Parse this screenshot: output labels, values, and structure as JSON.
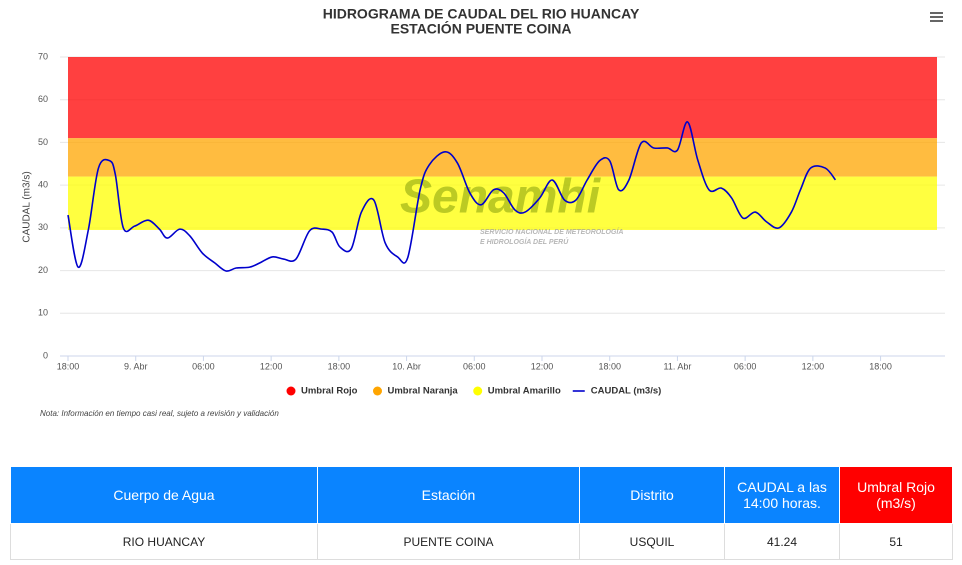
{
  "chart_data": {
    "type": "line",
    "title": [
      "HIDROGRAMA DE CAUDAL DEL RIO HUANCAY",
      "ESTACIÓN PUENTE COINA"
    ],
    "y_label": "CAUDAL (m3/s)",
    "note": "Nota: Información en tiempo casi real, sujeto a revisión y validación",
    "watermark": {
      "name": "Senamhi",
      "lines": [
        "SERVICIO NACIONAL DE METEOROLOGÍA",
        "E HIDROLOGÍA DEL PERÚ"
      ]
    },
    "xlim": [
      0,
      77
    ],
    "ylim": [
      0,
      70
    ],
    "yticks": [
      0,
      10,
      20,
      30,
      40,
      50,
      60,
      70
    ],
    "xticks": [
      {
        "value": 0,
        "label": "18:00"
      },
      {
        "value": 6,
        "label": "9. Abr"
      },
      {
        "value": 12,
        "label": "06:00"
      },
      {
        "value": 18,
        "label": "12:00"
      },
      {
        "value": 24,
        "label": "18:00"
      },
      {
        "value": 30,
        "label": "10. Abr"
      },
      {
        "value": 36,
        "label": "06:00"
      },
      {
        "value": 42,
        "label": "12:00"
      },
      {
        "value": 48,
        "label": "18:00"
      },
      {
        "value": 54,
        "label": "11. Abr"
      },
      {
        "value": 60,
        "label": "06:00"
      },
      {
        "value": 66,
        "label": "12:00"
      },
      {
        "value": 72,
        "label": "18:00"
      }
    ],
    "grid": true,
    "x": [
      0,
      0.9,
      1.8,
      2.7,
      3.7,
      4.2,
      4.9,
      5.9,
      7.1,
      8.1,
      8.8,
      9.9,
      10.8,
      11.9,
      13.0,
      14.0,
      14.9,
      16.1,
      17.0,
      18.1,
      19.1,
      20.2,
      21.4,
      22.5,
      23.4,
      24.1,
      25.1,
      26.0,
      27.1,
      28.1,
      29.2,
      30.1,
      31.2,
      32.0,
      33.4,
      34.5,
      35.6,
      36.6,
      37.7,
      38.6,
      39.6,
      40.5,
      41.8,
      42.9,
      44.0,
      45.0,
      46.0,
      47.1,
      48.0,
      48.8,
      49.7,
      50.8,
      51.9,
      53.1,
      54.0,
      54.9,
      55.8,
      56.8,
      57.9,
      58.8,
      59.8,
      60.9,
      61.9,
      63.0,
      64.1,
      64.9,
      65.8,
      67.1,
      68.0
    ],
    "series": [
      {
        "name": "Umbral Rojo",
        "color": "#ff0000",
        "from": 51,
        "to": 70
      },
      {
        "name": "Umbral Naranja",
        "color": "#ffa500",
        "from": 42,
        "to": 51
      },
      {
        "name": "Umbral Amarillo",
        "color": "#ffff00",
        "from": 29.5,
        "to": 42
      },
      {
        "name": "CAUDAL (m3/s)",
        "color": "#0000cc",
        "values": [
          33,
          20.8,
          29.5,
          44,
          45.7,
          42.4,
          30,
          30.4,
          31.8,
          29.7,
          27.6,
          29.7,
          28.1,
          24.1,
          21.8,
          19.9,
          20.6,
          20.8,
          21.8,
          23.2,
          22.7,
          22.7,
          29.3,
          29.7,
          29.0,
          25.5,
          25.1,
          33.7,
          36.5,
          26.5,
          23.2,
          23.0,
          38.9,
          44.7,
          47.8,
          45.2,
          38.2,
          35.4,
          38.9,
          38.2,
          34.2,
          33.7,
          37.0,
          41.2,
          36.5,
          36.5,
          41.2,
          45.7,
          45.7,
          38.9,
          41.2,
          49.9,
          48.7,
          48.7,
          48.2,
          54.8,
          45.9,
          38.9,
          39.3,
          37.0,
          32.3,
          33.7,
          31.4,
          30.0,
          33.7,
          38.9,
          44.0,
          44.0,
          41.24
        ]
      }
    ]
  },
  "table": {
    "headers": [
      "Cuerpo de Agua",
      "Estación",
      "Distrito",
      "CAUDAL a las 14:00 horas.",
      "Umbral Rojo (m3/s)"
    ],
    "rows": [
      [
        "RIO HUANCAY",
        "PUENTE COINA",
        "USQUIL",
        "41.24",
        "51"
      ]
    ]
  }
}
